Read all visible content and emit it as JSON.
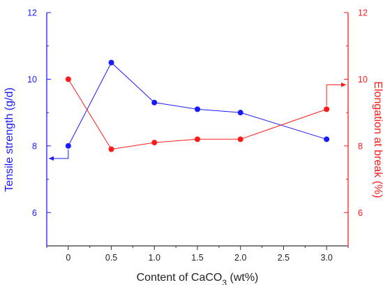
{
  "chart_data": {
    "type": "line",
    "title": "",
    "xlabel": "Content of CaCO",
    "xlabel_subscript": "3",
    "xlabel_suffix": " (wt%)",
    "xlim": [
      -0.25,
      3.25
    ],
    "x": [
      0,
      0.5,
      1.0,
      1.5,
      2.0,
      3.0
    ],
    "x_ticks": [
      0,
      0.5,
      1.0,
      1.5,
      2.0,
      2.5,
      3.0
    ],
    "x_tick_labels": [
      "0",
      "0.5",
      "1.0",
      "1.5",
      "2.0",
      "2.5",
      "3.0"
    ],
    "ylabel_left": "Tensile strength (g/d)",
    "ylabel_right": "Elongation at break (%)",
    "ylim_left": [
      5,
      12
    ],
    "ylim_right": [
      5,
      12
    ],
    "y_ticks_left": [
      6,
      8,
      10,
      12
    ],
    "y_ticks_right": [
      6,
      8,
      10,
      12
    ],
    "series": [
      {
        "values": [
          8.0,
          10.5,
          9.3,
          9.1,
          9.0,
          8.2
        ],
        "axis": "left",
        "color": "#1a1aff"
      },
      {
        "values": [
          10.0,
          7.9,
          8.1,
          8.2,
          8.2,
          9.1
        ],
        "axis": "right",
        "color": "#ff1a1a"
      }
    ],
    "left_axis_color": "#1a1aff",
    "right_axis_color": "#ff1a1a",
    "bottom_axis_color": "#333333",
    "annotations": [
      {
        "series": 0,
        "point_index": 0,
        "points_to": "left"
      },
      {
        "series": 1,
        "point_index": 5,
        "points_to": "right"
      }
    ],
    "grid": false,
    "legend": "none"
  }
}
